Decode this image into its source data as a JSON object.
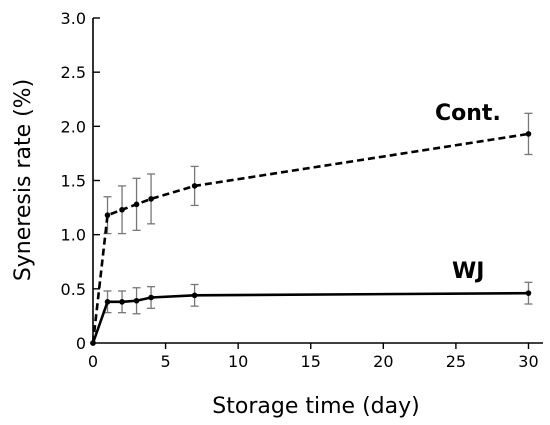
{
  "chart_data": {
    "type": "line",
    "title": "",
    "xlabel": "Storage time (day)",
    "ylabel": "Syneresis rate (%)",
    "xlim": [
      0,
      31
    ],
    "ylim": [
      0,
      3.0
    ],
    "xticks": [
      0,
      5,
      10,
      15,
      20,
      25,
      30
    ],
    "xtick_labels": [
      "0",
      "5",
      "10",
      "15",
      "20",
      "25",
      "30"
    ],
    "yticks": [
      0,
      0.5,
      1.0,
      1.5,
      2.0,
      2.5,
      3.0
    ],
    "ytick_labels": [
      "0",
      "0.5",
      "1.0",
      "1.5",
      "2.0",
      "2.5",
      "3.0"
    ],
    "grid": false,
    "series": [
      {
        "name": "Cont.",
        "line_style": "dashed",
        "color": "#000000",
        "x": [
          0,
          1,
          2,
          3,
          4,
          7,
          30
        ],
        "y": [
          0,
          1.18,
          1.23,
          1.28,
          1.33,
          1.45,
          1.93
        ],
        "error": [
          0,
          0.17,
          0.22,
          0.24,
          0.23,
          0.18,
          0.19
        ]
      },
      {
        "name": "WJ",
        "line_style": "solid",
        "color": "#000000",
        "x": [
          0,
          1,
          2,
          3,
          4,
          7,
          30
        ],
        "y": [
          0,
          0.38,
          0.38,
          0.39,
          0.42,
          0.44,
          0.46
        ],
        "error": [
          0,
          0.1,
          0.1,
          0.12,
          0.1,
          0.1,
          0.1
        ]
      }
    ]
  }
}
